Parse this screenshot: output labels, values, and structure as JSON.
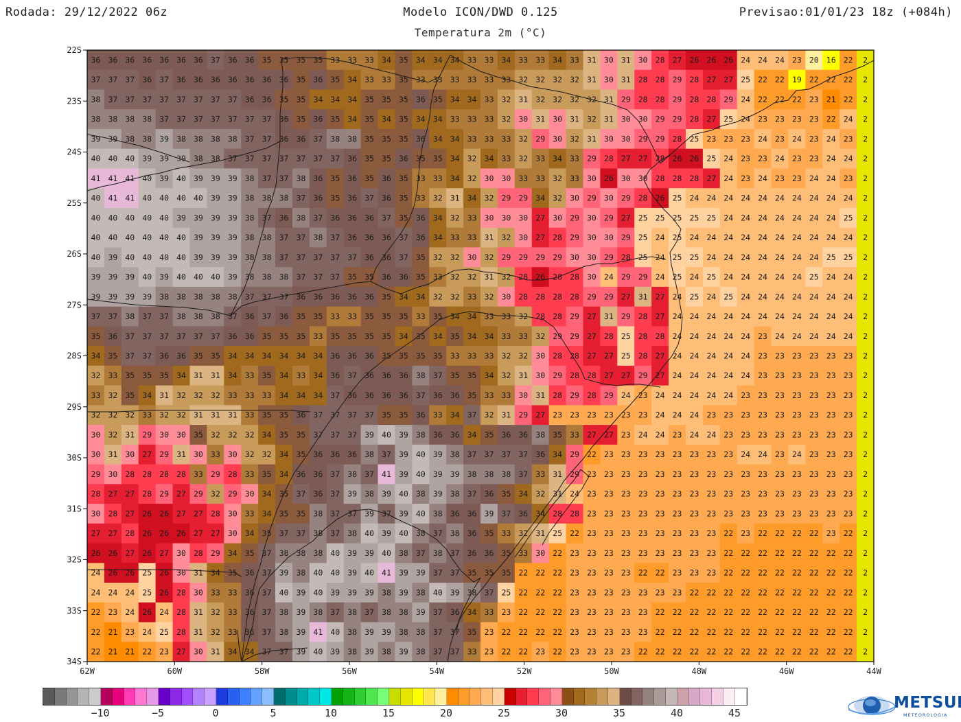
{
  "header": {
    "run": "Rodada: 29/12/2022 06z",
    "model": "Modelo ICON/DWD 0.125",
    "subtitle": "Temperatura 2m (°C)",
    "valid": "Previsao:01/01/23 18z (+084h)"
  },
  "map": {
    "lat_labels": [
      "22S",
      "23S",
      "24S",
      "25S",
      "26S",
      "27S",
      "28S",
      "29S",
      "30S",
      "31S",
      "32S",
      "33S",
      "34S"
    ],
    "lon_labels": [
      "62W",
      "60W",
      "58W",
      "56W",
      "54W",
      "52W",
      "50W",
      "48W",
      "46W",
      "44W"
    ],
    "lat_range": [
      -34,
      -22
    ],
    "lon_range": [
      -62,
      -44
    ],
    "value_grid_rows": [
      "36 36 36 36 36 36 36 37 36 36 35 35 35 35 33 33 33 34 35 34 34 34 33 33 34 33 33 34 33 31 30 31 30 28 27 26 26 26 24 24 24 23 20 16 22 2",
      "37 37 37 36 37 36 36 36 36 36 36 36 35 36 35 34 33 33 35 33 33 33 33 33 33 32 32 32 32 31 30 31 28 28 29 28 27 27 25 22 22 19 22 22 22 2",
      "38 37 37 37 37 37 37 37 37 36 36 35 35 34 34 34 35 35 35 36 35 34 34 33 32 31 32 32 32 32 31 29 28 28 29 28 28 29 24 22 22 22 23 21 22 2",
      "38 38 38 38 37 37 37 37 37 37 37 36 35 36 35 34 35 34 35 34 34 33 33 33 32 30 31 30 31 32 31 30 30 29 29 28 27 25 24 23 23 23 23 22 24 2",
      "39 39 38 38 39 38 38 38 38 37 37 36 36 37 38 38 35 35 35 36 34 34 33 33 33 32 29 30 32 31 30 30 29 29 28 25 23 23 23 24 23 24 23 24 23 2",
      "40 40 40 39 39 39 38 38 37 37 37 37 37 37 37 36 35 35 36 35 35 34 32 34 33 32 33 34 33 29 28 27 27 28 26 26 25 24 23 23 24 23 23 24 24 2",
      "41 41 41 40 39 40 39 39 39 38 37 37 38 36 35 36 35 36 35 33 33 34 32 30 30 33 33 32 33 30 26 30 30 28 28 28 27 24 23 24 23 23 24 24 23 2",
      "40 41 41 40 40 40 40 39 39 38 38 38 37 36 35 36 37 36 35 33 32 31 34 32 29 29 34 32 30 29 30 29 28 26 25 24 24 24 24 24 24 24 24 24 24 2",
      "40 40 40 40 40 39 39 39 39 38 37 36 38 37 36 36 36 37 35 36 34 32 33 30 30 30 27 30 29 30 29 27 25 25 25 25 25 24 24 24 24 24 24 24 25 2",
      "40 40 40 40 40 40 39 39 39 38 38 37 37 38 37 36 36 36 37 36 34 33 33 31 32 30 27 28 29 30 30 29 25 24 25 24 24 24 24 24 24 24 24 24 24 2",
      "40 39 40 40 40 40 39 39 39 38 38 37 37 37 37 37 36 36 37 35 32 32 30 32 29 29 29 29 30 30 29 28 25 24 25 25 24 24 24 24 24 24 24 25 25 2",
      "39 39 39 40 39 40 40 40 39 38 38 38 37 37 37 35 35 36 36 35 33 32 32 31 32 28 26 28 28 30 24 29 29 24 25 24 25 24 24 24 24 24 25 24 24 2",
      "39 39 39 39 38 38 38 38 38 37 37 37 36 36 36 36 36 35 34 34 32 32 33 32 30 28 28 28 28 29 29 27 31 27 24 25 24 25 24 24 24 24 24 24 24 2",
      "37 37 38 37 37 38 38 38 37 36 37 36 35 35 33 33 35 35 35 33 35 34 34 33 33 32 28 28 29 27 31 29 28 27 24 24 24 24 24 24 24 24 24 24 24 2",
      "35 36 37 37 37 37 37 37 36 36 35 35 35 33 35 35 35 35 34 35 34 35 34 34 33 33 32 29 29 27 28 25 28 28 24 24 24 24 24 23 24 24 24 24 24 2",
      "34 35 37 37 36 36 35 35 34 34 34 34 34 34 36 36 36 35 35 35 35 33 33 33 32 32 30 28 28 27 27 25 28 27 24 24 24 24 24 23 23 23 23 23 23 2",
      "32 33 35 35 35 34 31 31 34 33 35 34 33 34 36 37 36 36 36 38 37 35 35 34 32 31 30 29 28 28 27 27 29 27 24 24 24 24 24 23 23 23 23 23 23 2",
      "33 32 35 34 31 32 32 32 33 33 33 34 34 34 37 36 36 36 36 37 36 36 35 33 33 30 31 28 29 28 29 24 23 24 24 24 24 24 23 23 23 23 23 23 23 2",
      "32 32 32 33 32 32 31 31 31 33 35 35 36 37 37 37 37 35 35 36 33 34 37 32 31 29 27 23 23 23 23 23 23 24 24 24 23 23 23 23 23 23 23 23 23 2",
      "30 32 31 29 30 30 35 32 32 32 34 35 35 37 37 37 39 40 39 38 36 36 34 35 36 36 38 35 33 27 27 23 24 24 23 24 24 23 23 23 23 23 23 23 23 2",
      "30 31 30 27 29 31 30 33 30 32 32 34 35 36 36 36 38 37 39 40 39 38 37 37 37 37 36 34 29 22 23 23 23 23 23 23 23 23 24 24 23 24 23 23 23 2",
      "29 30 28 28 28 28 33 29 28 33 35 34 36 36 37 38 37 41 39 40 39 39 38 38 38 37 33 31 29 23 23 23 23 23 23 23 23 23 23 23 23 23 23 23 23 2",
      "28 27 27 28 29 27 29 32 29 30 34 35 37 36 37 39 38 39 40 38 39 38 37 36 35 34 32 31 24 23 23 23 23 23 23 23 23 23 23 23 23 23 23 23 23 2",
      "30 28 27 26 26 27 27 28 30 33 34 35 35 38 37 37 39 37 39 40 38 36 36 39 37 36 34 28 28 23 23 23 23 23 23 23 23 23 23 23 23 23 23 23 23 2",
      "27 27 28 26 26 26 27 27 30 34 35 37 37 38 37 38 40 39 40 38 37 38 36 35 33 32 31 25 22 23 23 23 23 23 23 23 23 22 23 22 22 22 22 23 22 2",
      "26 26 27 26 27 30 28 29 34 35 37 38 38 38 40 39 39 40 38 37 38 37 36 36 35 33 30 22 23 23 23 23 23 23 23 23 23 22 22 22 22 22 22 22 22 2",
      "24 26 26 25 26 30 31 34 35 36 37 39 38 40 40 39 40 41 39 39 37 37 35 35 35 22 22 22 23 23 23 23 22 22 23 23 23 22 22 22 22 22 22 22 22 2",
      "24 24 24 25 26 28 30 33 33 36 37 40 39 40 39 39 39 38 39 38 40 39 38 37 25 22 22 22 23 23 23 23 23 23 23 22 22 22 22 22 22 22 22 22 22 2",
      "22 23 24 26 24 28 31 32 33 36 37 38 39 38 37 38 37 38 38 39 37 36 34 33 23 22 22 22 23 23 23 23 23 22 22 22 22 22 22 22 22 22 22 22 22 2",
      "22 21 23 24 25 28 31 32 33 36 37 38 39 41 40 38 39 39 38 38 37 37 35 23 22 22 22 22 23 23 23 23 23 22 22 22 22 22 22 22 22 22 22 22 22 2",
      "22 21 21 22 23 27 30 31 34 34 37 37 39 40 39 38 39 38 39 38 37 37 33 23 22 22 23 22 23 23 23 23 22 22 22 22 22 22 22 22 22 22 22 22 22 2"
    ]
  },
  "colorbar": {
    "colors": [
      "#595959",
      "#7a7a7a",
      "#969696",
      "#b4b4b4",
      "#cbcbcb",
      "#b4005a",
      "#e6007d",
      "#ff3cb4",
      "#ff78d2",
      "#e699e6",
      "#6a00c8",
      "#8c28e6",
      "#a050ff",
      "#b482ff",
      "#c8a0ff",
      "#1e3cdc",
      "#2860f0",
      "#3c82ff",
      "#64a0ff",
      "#8cbeff",
      "#006e6e",
      "#008c8c",
      "#00aaaa",
      "#00c8c8",
      "#00e6e6",
      "#00a000",
      "#14b414",
      "#32cd32",
      "#50e650",
      "#78ff78",
      "#c8dc00",
      "#e6e600",
      "#ffff00",
      "#ffe650",
      "#fff0a0",
      "#ff8c00",
      "#ff9b28",
      "#ffaa50",
      "#ffbe78",
      "#ffd2a0",
      "#c80000",
      "#e61e32",
      "#ff3c50",
      "#ff6478",
      "#ff8c96",
      "#8c5014",
      "#a0691e",
      "#b48232",
      "#c89b5a",
      "#dcb482",
      "#6e4b46",
      "#826460",
      "#96827e",
      "#aa9b98",
      "#c3b9b7",
      "#cfa0a8",
      "#d8a8c8",
      "#e8b8d8",
      "#f4d0e4",
      "#fcecf4",
      "#ffffff"
    ],
    "labels": [
      "−10",
      "−5",
      "0",
      "5",
      "10",
      "15",
      "20",
      "25",
      "30",
      "35",
      "40",
      "45"
    ]
  },
  "logo": {
    "text": "METSUL",
    "subtext": "METEOROLOGIA"
  }
}
